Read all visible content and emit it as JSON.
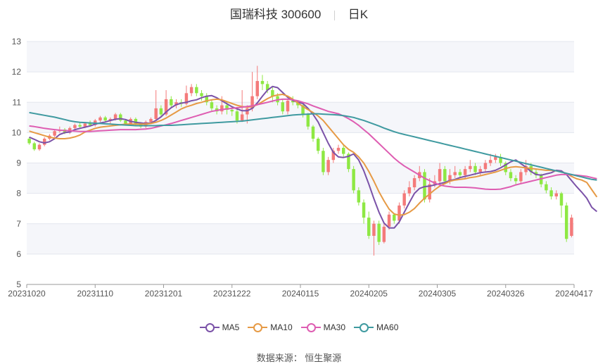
{
  "title": {
    "name": "国瑞科技 300600",
    "period": "日K"
  },
  "source": "数据来源： 恒生聚源",
  "colors": {
    "up": "#f47a7a",
    "down": "#8ee843",
    "MA5": "#7b52a8",
    "MA10": "#e69a45",
    "MA30": "#de5db2",
    "MA60": "#3f9aa0"
  },
  "chart_data": {
    "type": "candlestick",
    "ylim": [
      5,
      13
    ],
    "yticks": [
      5,
      6,
      7,
      8,
      9,
      10,
      11,
      12,
      13
    ],
    "xtick_labels": [
      "20231020",
      "20231110",
      "20231201",
      "20231222",
      "20240115",
      "20240205",
      "20240305",
      "20240326",
      "20240417"
    ],
    "legend": [
      "MA5",
      "MA10",
      "MA30",
      "MA60"
    ],
    "legend_position": "bottom",
    "candles": [
      [
        9.8,
        9.65,
        9.85,
        9.6
      ],
      [
        9.65,
        9.45,
        9.7,
        9.4
      ],
      [
        9.45,
        9.6,
        9.65,
        9.4
      ],
      [
        9.6,
        9.8,
        9.85,
        9.55
      ],
      [
        9.8,
        9.9,
        9.95,
        9.75
      ],
      [
        9.9,
        10.05,
        10.1,
        9.85
      ],
      [
        10.05,
        10.1,
        10.2,
        10.0
      ],
      [
        10.1,
        10.0,
        10.15,
        9.95
      ],
      [
        10.0,
        10.15,
        10.2,
        9.95
      ],
      [
        10.15,
        10.25,
        10.3,
        10.1
      ],
      [
        10.25,
        10.2,
        10.35,
        10.15
      ],
      [
        10.2,
        10.3,
        10.35,
        10.15
      ],
      [
        10.3,
        10.25,
        10.4,
        10.2
      ],
      [
        10.25,
        10.4,
        10.45,
        10.2
      ],
      [
        10.4,
        10.5,
        10.55,
        10.35
      ],
      [
        10.5,
        10.4,
        10.55,
        10.35
      ],
      [
        10.4,
        10.45,
        10.5,
        10.3
      ],
      [
        10.45,
        10.6,
        10.65,
        10.4
      ],
      [
        10.6,
        10.4,
        10.65,
        10.35
      ],
      [
        10.4,
        10.3,
        10.45,
        10.25
      ],
      [
        10.3,
        10.45,
        10.5,
        10.25
      ],
      [
        10.45,
        10.3,
        10.5,
        10.25
      ],
      [
        10.3,
        10.2,
        10.35,
        10.15
      ],
      [
        10.2,
        10.35,
        10.4,
        10.15
      ],
      [
        10.35,
        10.45,
        10.5,
        10.3
      ],
      [
        10.45,
        10.8,
        11.4,
        10.4
      ],
      [
        10.8,
        10.6,
        10.9,
        10.5
      ],
      [
        10.6,
        11.1,
        11.4,
        10.55
      ],
      [
        11.1,
        10.9,
        11.2,
        10.8
      ],
      [
        10.9,
        11.0,
        11.1,
        10.8
      ],
      [
        11.0,
        10.95,
        11.1,
        10.85
      ],
      [
        10.95,
        11.3,
        11.55,
        10.9
      ],
      [
        11.3,
        11.5,
        11.6,
        11.2
      ],
      [
        11.5,
        11.3,
        11.6,
        11.2
      ],
      [
        11.3,
        11.2,
        11.4,
        11.05
      ],
      [
        11.2,
        11.0,
        11.3,
        10.9
      ],
      [
        11.0,
        10.8,
        11.1,
        10.7
      ],
      [
        10.8,
        10.7,
        10.9,
        10.6
      ],
      [
        10.7,
        10.9,
        11.2,
        10.6
      ],
      [
        10.9,
        10.75,
        11.0,
        10.6
      ],
      [
        10.75,
        10.7,
        10.85,
        10.55
      ],
      [
        10.7,
        10.4,
        10.8,
        10.3
      ],
      [
        10.4,
        10.6,
        11.4,
        10.35
      ],
      [
        10.6,
        10.8,
        10.9,
        10.3
      ],
      [
        10.8,
        11.2,
        12.0,
        10.7
      ],
      [
        11.2,
        11.7,
        12.2,
        11.1
      ],
      [
        11.7,
        11.6,
        11.9,
        11.4
      ],
      [
        11.6,
        11.4,
        11.7,
        11.3
      ],
      [
        11.4,
        11.2,
        11.5,
        11.0
      ],
      [
        11.2,
        11.0,
        11.3,
        10.9
      ],
      [
        11.0,
        10.7,
        11.1,
        10.6
      ],
      [
        10.7,
        11.05,
        11.1,
        10.6
      ],
      [
        11.05,
        11.0,
        11.2,
        10.9
      ],
      [
        11.0,
        10.9,
        11.05,
        10.8
      ],
      [
        10.9,
        10.6,
        10.95,
        10.5
      ],
      [
        10.6,
        10.2,
        10.65,
        10.1
      ],
      [
        10.2,
        9.8,
        10.25,
        9.7
      ],
      [
        9.8,
        9.4,
        9.85,
        9.3
      ],
      [
        9.4,
        8.7,
        9.5,
        8.6
      ],
      [
        8.7,
        9.1,
        9.2,
        8.6
      ],
      [
        9.1,
        9.4,
        9.5,
        9.0
      ],
      [
        9.4,
        9.5,
        9.6,
        9.3
      ],
      [
        9.5,
        9.3,
        9.6,
        9.2
      ],
      [
        9.3,
        8.8,
        9.35,
        8.7
      ],
      [
        8.8,
        8.1,
        8.9,
        8.0
      ],
      [
        8.1,
        7.7,
        8.2,
        7.6
      ],
      [
        7.7,
        7.2,
        7.8,
        7.0
      ],
      [
        7.2,
        6.6,
        7.4,
        6.5
      ],
      [
        6.6,
        7.0,
        7.1,
        5.95
      ],
      [
        7.0,
        6.4,
        7.1,
        6.3
      ],
      [
        6.4,
        6.9,
        7.0,
        6.35
      ],
      [
        6.9,
        7.3,
        7.4,
        6.8
      ],
      [
        7.3,
        7.1,
        7.35,
        7.0
      ],
      [
        7.1,
        7.6,
        7.7,
        7.0
      ],
      [
        7.6,
        8.0,
        8.1,
        7.5
      ],
      [
        8.0,
        8.2,
        8.4,
        7.9
      ],
      [
        8.2,
        8.5,
        8.6,
        8.1
      ],
      [
        8.5,
        8.7,
        8.9,
        8.4
      ],
      [
        8.7,
        7.8,
        8.8,
        7.7
      ],
      [
        7.8,
        8.3,
        8.5,
        7.7
      ],
      [
        8.3,
        8.4,
        8.6,
        8.2
      ],
      [
        8.4,
        8.8,
        9.0,
        8.3
      ],
      [
        8.8,
        8.4,
        8.9,
        8.3
      ],
      [
        8.4,
        8.6,
        8.8,
        8.3
      ],
      [
        8.6,
        8.7,
        8.9,
        8.5
      ],
      [
        8.7,
        8.6,
        8.8,
        8.5
      ],
      [
        8.6,
        8.8,
        8.9,
        8.5
      ],
      [
        8.8,
        8.9,
        9.1,
        8.7
      ],
      [
        8.9,
        8.7,
        9.0,
        8.6
      ],
      [
        8.7,
        8.8,
        8.9,
        8.6
      ],
      [
        8.8,
        9.0,
        9.1,
        8.7
      ],
      [
        9.0,
        9.1,
        9.3,
        8.9
      ],
      [
        9.1,
        9.2,
        9.3,
        9.0
      ],
      [
        9.2,
        9.0,
        9.3,
        8.9
      ],
      [
        9.0,
        8.7,
        9.05,
        8.6
      ],
      [
        8.7,
        8.5,
        8.8,
        8.4
      ],
      [
        8.5,
        8.4,
        8.6,
        8.3
      ],
      [
        8.4,
        8.7,
        8.8,
        8.3
      ],
      [
        8.7,
        8.9,
        9.1,
        8.6
      ],
      [
        8.9,
        8.7,
        9.0,
        8.6
      ],
      [
        8.7,
        8.6,
        8.8,
        8.5
      ],
      [
        8.6,
        8.3,
        8.65,
        8.2
      ],
      [
        8.3,
        8.1,
        8.4,
        8.0
      ],
      [
        8.1,
        7.9,
        8.2,
        7.8
      ],
      [
        7.9,
        8.0,
        8.1,
        7.8
      ],
      [
        8.0,
        7.6,
        8.05,
        7.2
      ],
      [
        7.6,
        6.5,
        7.7,
        6.4
      ],
      [
        6.6,
        7.2,
        7.3,
        6.55
      ]
    ],
    "series": [
      {
        "name": "MA5",
        "values": [
          9.85,
          9.78,
          9.7,
          9.66,
          9.7,
          9.8,
          9.94,
          10.0,
          10.02,
          10.1,
          10.14,
          10.18,
          10.22,
          10.28,
          10.32,
          10.35,
          10.4,
          10.44,
          10.46,
          10.43,
          10.37,
          10.34,
          10.32,
          10.3,
          10.32,
          10.4,
          10.52,
          10.68,
          10.82,
          10.92,
          10.97,
          11.0,
          11.05,
          11.08,
          11.15,
          11.2,
          11.22,
          11.15,
          11.05,
          10.95,
          10.85,
          10.78,
          10.72,
          10.72,
          10.8,
          10.98,
          11.2,
          11.4,
          11.52,
          11.48,
          11.32,
          11.16,
          11.06,
          11.0,
          10.96,
          10.8,
          10.6,
          10.35,
          10.0,
          9.65,
          9.35,
          9.2,
          9.18,
          9.22,
          9.3,
          9.1,
          8.75,
          8.3,
          7.82,
          7.38,
          7.02,
          6.86,
          6.86,
          7.06,
          7.38,
          7.7,
          8.0,
          8.16,
          8.22,
          8.24,
          8.28,
          8.32,
          8.36,
          8.42,
          8.46,
          8.52,
          8.56,
          8.6,
          8.64,
          8.68,
          8.7,
          8.72,
          8.76,
          8.84,
          8.94,
          9.04,
          9.1,
          8.98,
          8.86,
          8.72,
          8.62,
          8.6,
          8.64,
          8.68,
          8.76,
          8.74,
          8.62,
          8.42,
          8.22,
          8.04,
          7.84,
          7.54,
          7.4
        ]
      },
      {
        "name": "MA10",
        "values": [
          10.05,
          10.0,
          9.95,
          9.9,
          9.85,
          9.82,
          9.8,
          9.8,
          9.82,
          9.86,
          9.92,
          10.02,
          10.08,
          10.14,
          10.18,
          10.2,
          10.22,
          10.24,
          10.26,
          10.28,
          10.28,
          10.28,
          10.28,
          10.28,
          10.3,
          10.34,
          10.4,
          10.48,
          10.58,
          10.68,
          10.78,
          10.85,
          10.9,
          10.96,
          11.0,
          11.05,
          11.08,
          11.1,
          11.08,
          11.02,
          10.96,
          10.9,
          10.86,
          10.84,
          10.86,
          10.92,
          11.02,
          11.12,
          11.2,
          11.24,
          11.26,
          11.2,
          11.1,
          10.98,
          10.86,
          10.76,
          10.66,
          10.55,
          10.4,
          10.2,
          10.0,
          9.8,
          9.6,
          9.45,
          9.35,
          9.2,
          9.0,
          8.72,
          8.4,
          8.05,
          7.75,
          7.48,
          7.32,
          7.28,
          7.3,
          7.38,
          7.5,
          7.68,
          7.84,
          7.98,
          8.12,
          8.24,
          8.32,
          8.4,
          8.44,
          8.46,
          8.48,
          8.52,
          8.54,
          8.58,
          8.62,
          8.66,
          8.7,
          8.76,
          8.82,
          8.86,
          8.88,
          8.86,
          8.84,
          8.82,
          8.8,
          8.78,
          8.76,
          8.76,
          8.74,
          8.7,
          8.66,
          8.56,
          8.48,
          8.44,
          8.36,
          8.12,
          7.88
        ]
      },
      {
        "name": "MA30",
        "values": [
          10.22,
          10.2,
          10.17,
          10.14,
          10.12,
          10.1,
          10.08,
          10.07,
          10.06,
          10.05,
          10.04,
          10.04,
          10.04,
          10.05,
          10.06,
          10.07,
          10.08,
          10.09,
          10.1,
          10.1,
          10.1,
          10.1,
          10.11,
          10.12,
          10.14,
          10.18,
          10.22,
          10.26,
          10.3,
          10.35,
          10.4,
          10.45,
          10.5,
          10.55,
          10.6,
          10.65,
          10.7,
          10.73,
          10.76,
          10.78,
          10.8,
          10.82,
          10.84,
          10.86,
          10.88,
          10.92,
          10.96,
          11.0,
          11.04,
          11.08,
          11.1,
          11.1,
          11.08,
          11.05,
          11.0,
          10.95,
          10.88,
          10.82,
          10.76,
          10.7,
          10.66,
          10.62,
          10.55,
          10.46,
          10.36,
          10.24,
          10.1,
          9.96,
          9.8,
          9.64,
          9.48,
          9.32,
          9.16,
          9.02,
          8.9,
          8.8,
          8.7,
          8.6,
          8.5,
          8.42,
          8.34,
          8.28,
          8.24,
          8.22,
          8.2,
          8.2,
          8.2,
          8.19,
          8.18,
          8.16,
          8.14,
          8.13,
          8.13,
          8.14,
          8.18,
          8.22,
          8.28,
          8.32,
          8.36,
          8.4,
          8.44,
          8.48,
          8.52,
          8.56,
          8.6,
          8.62,
          8.62,
          8.61,
          8.6,
          8.58,
          8.56,
          8.52,
          8.48
        ]
      },
      {
        "name": "MA60",
        "values": [
          10.66,
          10.63,
          10.6,
          10.57,
          10.54,
          10.51,
          10.47,
          10.43,
          10.39,
          10.36,
          10.34,
          10.33,
          10.32,
          10.31,
          10.3,
          10.29,
          10.28,
          10.27,
          10.26,
          10.25,
          10.24,
          10.23,
          10.23,
          10.23,
          10.23,
          10.23,
          10.24,
          10.24,
          10.24,
          10.25,
          10.26,
          10.27,
          10.28,
          10.29,
          10.3,
          10.31,
          10.32,
          10.33,
          10.34,
          10.35,
          10.36,
          10.37,
          10.38,
          10.4,
          10.42,
          10.44,
          10.46,
          10.48,
          10.5,
          10.52,
          10.54,
          10.56,
          10.58,
          10.59,
          10.6,
          10.61,
          10.62,
          10.62,
          10.61,
          10.6,
          10.59,
          10.58,
          10.56,
          10.53,
          10.5,
          10.45,
          10.4,
          10.34,
          10.28,
          10.22,
          10.15,
          10.09,
          10.03,
          9.98,
          9.94,
          9.9,
          9.86,
          9.82,
          9.78,
          9.74,
          9.7,
          9.66,
          9.62,
          9.58,
          9.54,
          9.5,
          9.46,
          9.42,
          9.38,
          9.34,
          9.3,
          9.26,
          9.22,
          9.18,
          9.14,
          9.1,
          9.06,
          9.02,
          8.98,
          8.94,
          8.9,
          8.86,
          8.82,
          8.78,
          8.74,
          8.7,
          8.66,
          8.62,
          8.58,
          8.54,
          8.5,
          8.46,
          8.44
        ]
      }
    ]
  }
}
